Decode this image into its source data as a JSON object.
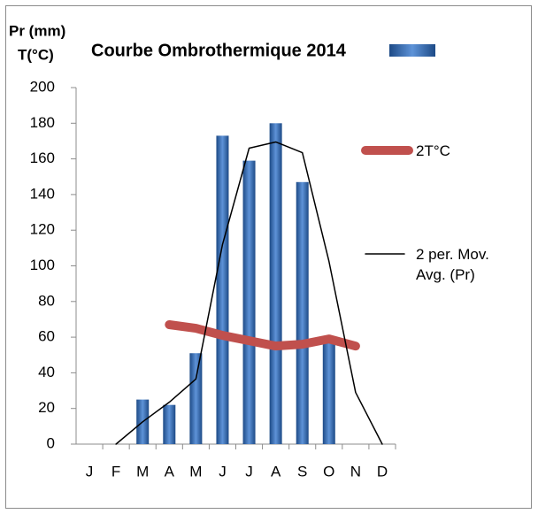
{
  "chart_data": {
    "type": "bar",
    "title": "Courbe Ombrothermique 2014",
    "y_label": [
      "Pr (mm)",
      "T(°C)"
    ],
    "categories": [
      "J",
      "F",
      "M",
      "A",
      "M",
      "J",
      "J",
      "A",
      "S",
      "O",
      "N",
      "D"
    ],
    "series": [
      {
        "name": "Pr",
        "type": "bar",
        "color": "#2e6bb8",
        "values": [
          0,
          0,
          25,
          22,
          51,
          173,
          159,
          180,
          147,
          58,
          0,
          0
        ]
      },
      {
        "name": "2T°C",
        "type": "line",
        "color": "#c0504d",
        "values": [
          null,
          null,
          null,
          67,
          65,
          61,
          58,
          55,
          56,
          59,
          55,
          null
        ]
      },
      {
        "name": "2 per. Mov. Avg. (Pr)",
        "type": "line",
        "color": "#000000",
        "values": [
          null,
          0,
          12.5,
          23.5,
          36.5,
          112,
          166,
          169.5,
          163.5,
          102.5,
          29,
          0
        ]
      }
    ],
    "ylim": [
      0,
      200
    ],
    "yticks": [
      0,
      20,
      40,
      60,
      80,
      100,
      120,
      140,
      160,
      180,
      200
    ],
    "grid": false
  }
}
